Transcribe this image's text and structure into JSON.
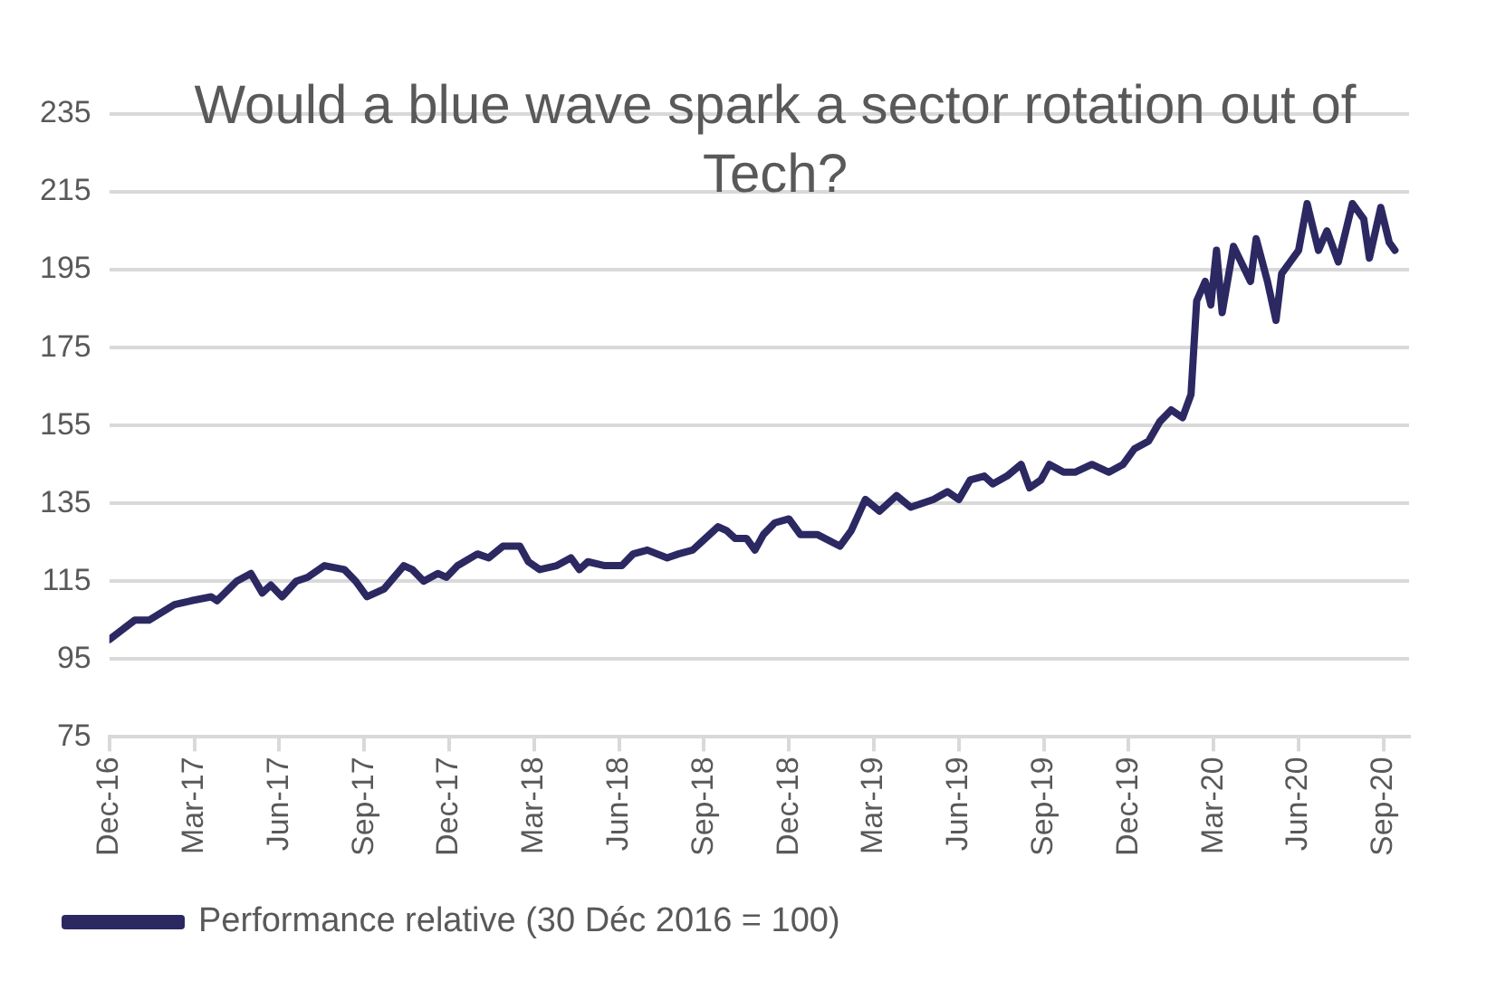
{
  "chart_data": {
    "type": "line",
    "title": "Would a blue wave spark a sector rotation out of Tech?",
    "x": [
      "2016-12-01",
      "2016-12-28",
      "2017-01-13",
      "2017-02-10",
      "2017-02-28",
      "2017-03-19",
      "2017-03-25",
      "2017-04-16",
      "2017-05-01",
      "2017-05-13",
      "2017-05-22",
      "2017-06-04",
      "2017-06-19",
      "2017-07-01",
      "2017-07-19",
      "2017-08-10",
      "2017-08-22",
      "2017-09-04",
      "2017-09-22",
      "2017-10-13",
      "2017-10-22",
      "2017-11-04",
      "2017-11-19",
      "2017-11-28",
      "2017-12-10",
      "2018-01-01",
      "2018-01-13",
      "2018-01-28",
      "2018-02-16",
      "2018-02-25",
      "2018-03-07",
      "2018-03-25",
      "2018-04-10",
      "2018-04-19",
      "2018-04-28",
      "2018-05-16",
      "2018-06-04",
      "2018-06-16",
      "2018-07-01",
      "2018-07-22",
      "2018-08-04",
      "2018-08-19",
      "2018-08-28",
      "2018-09-16",
      "2018-09-25",
      "2018-10-04",
      "2018-10-16",
      "2018-10-25",
      "2018-11-04",
      "2018-11-16",
      "2018-12-01",
      "2018-12-13",
      "2019-01-01",
      "2019-01-25",
      "2019-02-07",
      "2019-02-22",
      "2019-03-07",
      "2019-03-25",
      "2019-04-10",
      "2019-04-22",
      "2019-05-04",
      "2019-05-19",
      "2019-06-01",
      "2019-06-13",
      "2019-06-28",
      "2019-07-07",
      "2019-07-22",
      "2019-08-07",
      "2019-08-16",
      "2019-08-28",
      "2019-09-07",
      "2019-09-22",
      "2019-10-04",
      "2019-10-22",
      "2019-11-10",
      "2019-11-25",
      "2019-12-07",
      "2019-12-22",
      "2020-01-04",
      "2020-01-16",
      "2020-01-28",
      "2020-02-07",
      "2020-02-13",
      "2020-02-22",
      "2020-02-28",
      "2020-03-04",
      "2020-03-10",
      "2020-03-22",
      "2020-04-04",
      "2020-04-10",
      "2020-04-16",
      "2020-04-28",
      "2020-05-07",
      "2020-05-13",
      "2020-06-01",
      "2020-06-10",
      "2020-06-22",
      "2020-07-01",
      "2020-07-13",
      "2020-07-28",
      "2020-08-10",
      "2020-08-16",
      "2020-08-28",
      "2020-09-07",
      "2020-09-13"
    ],
    "series": [
      {
        "name": "Performance relative (30 Déc 2016 = 100)",
        "color": "#2b2862",
        "values": [
          100,
          105,
          105,
          109,
          110,
          111,
          110,
          115,
          117,
          112,
          114,
          111,
          115,
          116,
          119,
          118,
          115,
          111,
          113,
          119,
          118,
          115,
          117,
          116,
          119,
          122,
          121,
          124,
          124,
          120,
          118,
          119,
          121,
          118,
          120,
          119,
          119,
          122,
          123,
          121,
          122,
          123,
          125,
          129,
          128,
          126,
          126,
          123,
          127,
          130,
          131,
          127,
          127,
          124,
          128,
          136,
          133,
          137,
          134,
          135,
          136,
          138,
          136,
          141,
          142,
          140,
          142,
          145,
          139,
          141,
          145,
          143,
          143,
          145,
          143,
          145,
          149,
          151,
          156,
          159,
          157,
          163,
          187,
          192,
          186,
          200,
          184,
          201,
          195,
          192,
          203,
          192,
          182,
          194,
          200,
          212,
          200,
          205,
          197,
          212,
          208,
          198,
          211,
          202,
          200
        ]
      }
    ],
    "xlim": [
      "2016-12-01",
      "2020-09-28"
    ],
    "xticks": [
      {
        "value": "2016-12-01",
        "label": "Dec-16"
      },
      {
        "value": "2017-03-01",
        "label": "Mar-17"
      },
      {
        "value": "2017-06-01",
        "label": "Jun-17"
      },
      {
        "value": "2017-09-01",
        "label": "Sep-17"
      },
      {
        "value": "2017-12-01",
        "label": "Dec-17"
      },
      {
        "value": "2018-03-01",
        "label": "Mar-18"
      },
      {
        "value": "2018-06-01",
        "label": "Jun-18"
      },
      {
        "value": "2018-09-01",
        "label": "Sep-18"
      },
      {
        "value": "2018-12-01",
        "label": "Dec-18"
      },
      {
        "value": "2019-03-01",
        "label": "Mar-19"
      },
      {
        "value": "2019-06-01",
        "label": "Jun-19"
      },
      {
        "value": "2019-09-01",
        "label": "Sep-19"
      },
      {
        "value": "2019-12-01",
        "label": "Dec-19"
      },
      {
        "value": "2020-03-01",
        "label": "Mar-20"
      },
      {
        "value": "2020-06-01",
        "label": "Jun-20"
      },
      {
        "value": "2020-09-01",
        "label": "Sep-20"
      }
    ],
    "ylim": [
      75,
      235
    ],
    "yticks": [
      75,
      95,
      115,
      135,
      155,
      175,
      195,
      215,
      235
    ],
    "grid": "y",
    "legend": "bottom",
    "marker": "none",
    "line_style": "solid"
  }
}
